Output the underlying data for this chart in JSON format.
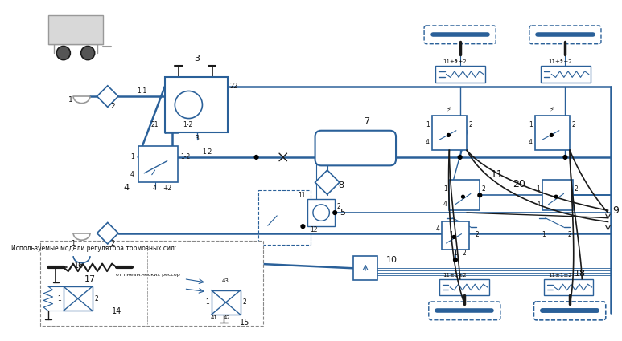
{
  "bg_color": "#ffffff",
  "lc": "#2A6099",
  "dk": "#1a1a1a",
  "gr": "#999999",
  "figsize": [
    7.73,
    4.25
  ],
  "dpi": 100
}
